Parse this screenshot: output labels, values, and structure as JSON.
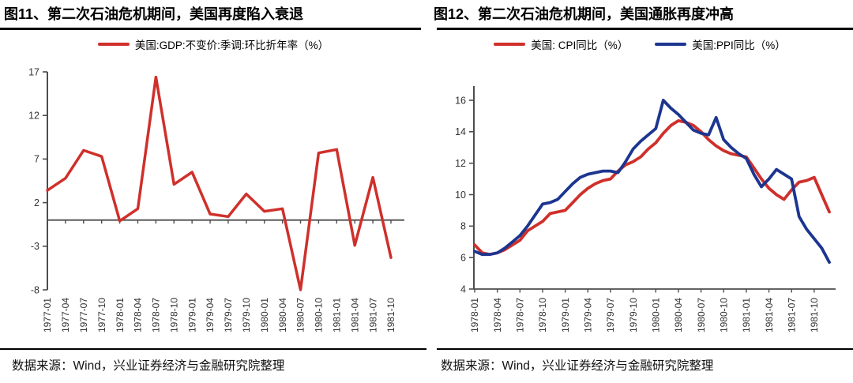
{
  "style": {
    "red": "#cf302b",
    "blue": "#1c3590",
    "axis_color": "#4d4d4d",
    "tick_text_color": "#333333",
    "rule_color": "#000000"
  },
  "chart_data": [
    {
      "type": "line",
      "title": "图11、第二次石油危机期间，美国再度陷入衰退",
      "source": "数据来源：Wind，兴业证券经济与金融研究院整理",
      "legend": [
        {
          "label": "美国:GDP:不变价:季调:环比折年率（%）",
          "color": "#cf302b"
        }
      ],
      "y_ticks": [
        17,
        12,
        7,
        2,
        -3,
        -8
      ],
      "ylim": [
        -8,
        17
      ],
      "baseline": 0,
      "grid": false,
      "legend_position": "top",
      "points_per_label": 1,
      "x_labels": [
        "1977-01",
        "1977-04",
        "1977-07",
        "1977-10",
        "1978-01",
        "1978-04",
        "1978-07",
        "1978-10",
        "1979-01",
        "1979-04",
        "1979-07",
        "1979-10",
        "1980-01",
        "1980-04",
        "1980-07",
        "1980-10",
        "1981-01",
        "1981-04",
        "1981-07",
        "1981-10"
      ],
      "series": [
        {
          "name": "美国:GDP:不变价:季调:环比折年率（%）",
          "color": "#cf302b",
          "values": [
            3.4,
            4.8,
            8.0,
            7.3,
            -0.1,
            1.3,
            16.4,
            4.1,
            5.5,
            0.7,
            0.4,
            3.0,
            1.0,
            1.3,
            -8.0,
            7.7,
            8.1,
            -2.9,
            4.9,
            -4.3
          ]
        }
      ]
    },
    {
      "type": "line",
      "title": "图12、第二次石油危机期间，美国通胀再度冲高",
      "source": "数据来源：Wind，兴业证券经济与金融研究院整理",
      "legend": [
        {
          "label": "美国: CPI同比（%）",
          "color": "#cf302b"
        },
        {
          "label": "美国:PPI同比（%）",
          "color": "#1c3590"
        }
      ],
      "y_ticks": [
        16,
        14,
        12,
        10,
        8,
        6,
        4
      ],
      "ylim": [
        4,
        16
      ],
      "baseline": 4,
      "grid": false,
      "legend_position": "top",
      "points_per_label": 3,
      "x_labels": [
        "1978-01",
        "1978-04",
        "1978-07",
        "1978-10",
        "1979-01",
        "1979-04",
        "1979-07",
        "1979-10",
        "1980-01",
        "1980-04",
        "1980-07",
        "1980-10",
        "1981-01",
        "1981-04",
        "1981-07",
        "1981-10"
      ],
      "series": [
        {
          "name": "美国: CPI同比（%）",
          "color": "#cf302b",
          "values": [
            6.8,
            6.3,
            6.2,
            6.3,
            6.5,
            6.8,
            7.1,
            7.7,
            8.0,
            8.3,
            8.8,
            8.9,
            9.0,
            9.5,
            10.0,
            10.4,
            10.7,
            10.9,
            11.0,
            11.5,
            11.9,
            12.1,
            12.4,
            12.9,
            13.3,
            13.9,
            14.4,
            14.7,
            14.6,
            14.4,
            14.0,
            13.5,
            13.1,
            12.8,
            12.6,
            12.5,
            12.4,
            11.7,
            11.0,
            10.4,
            10.0,
            9.7,
            10.3,
            10.8,
            10.9,
            11.1,
            10.0,
            8.9
          ]
        },
        {
          "name": "美国:PPI同比（%）",
          "color": "#1c3590",
          "values": [
            6.4,
            6.2,
            6.2,
            6.3,
            6.6,
            7.0,
            7.4,
            8.0,
            8.7,
            9.4,
            9.5,
            9.7,
            10.2,
            10.7,
            11.1,
            11.3,
            11.4,
            11.5,
            11.5,
            11.4,
            12.1,
            12.9,
            13.4,
            13.8,
            14.2,
            16.0,
            15.5,
            15.1,
            14.6,
            14.1,
            13.9,
            13.8,
            14.9,
            13.5,
            13.0,
            12.6,
            12.3,
            11.3,
            10.5,
            11.0,
            11.6,
            11.3,
            11.0,
            8.6,
            7.8,
            7.2,
            6.6,
            5.7
          ]
        }
      ]
    }
  ]
}
